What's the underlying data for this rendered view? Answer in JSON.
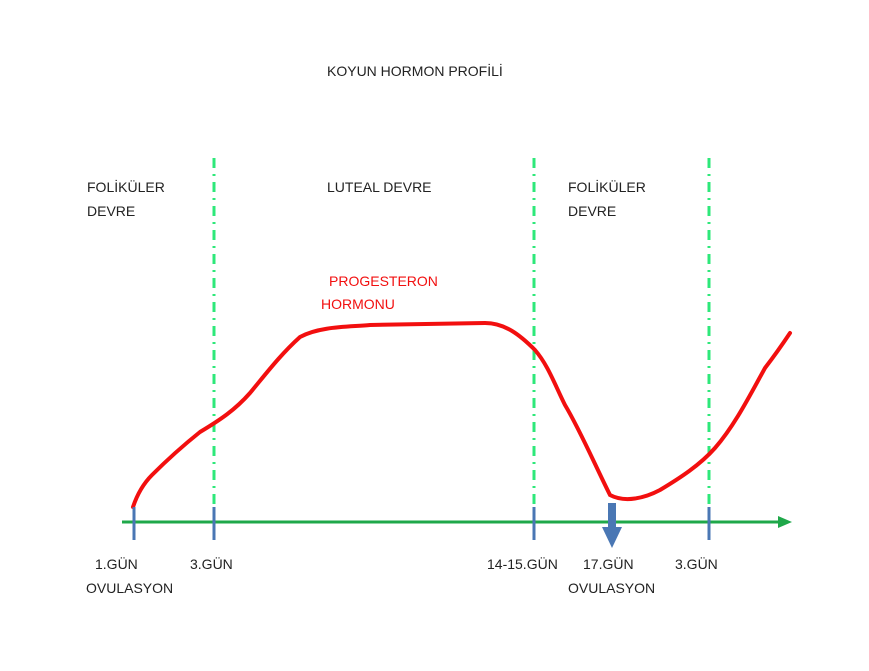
{
  "title": "KOYUN HORMON PROFİLİ",
  "phases": [
    {
      "line1": "FOLİKÜLER",
      "line2": "DEVRE"
    },
    {
      "line1": "LUTEAL DEVRE"
    },
    {
      "line1": "FOLİKÜLER",
      "line2": "DEVRE"
    }
  ],
  "curve_label": {
    "line1": "PROGESTERON",
    "line2": "HORMONU"
  },
  "ticks": [
    {
      "label": "1.GÜN",
      "sub": "OVULASYON"
    },
    {
      "label": "3.GÜN"
    },
    {
      "label": "14-15.GÜN"
    },
    {
      "label": "17.GÜN",
      "sub": "OVULASYON"
    },
    {
      "label": "3.GÜN"
    }
  ],
  "colors": {
    "curve": "#f20f0f",
    "axis": "#1fa84a",
    "divider": "#2ee87a",
    "tick": "#4a77b4"
  }
}
